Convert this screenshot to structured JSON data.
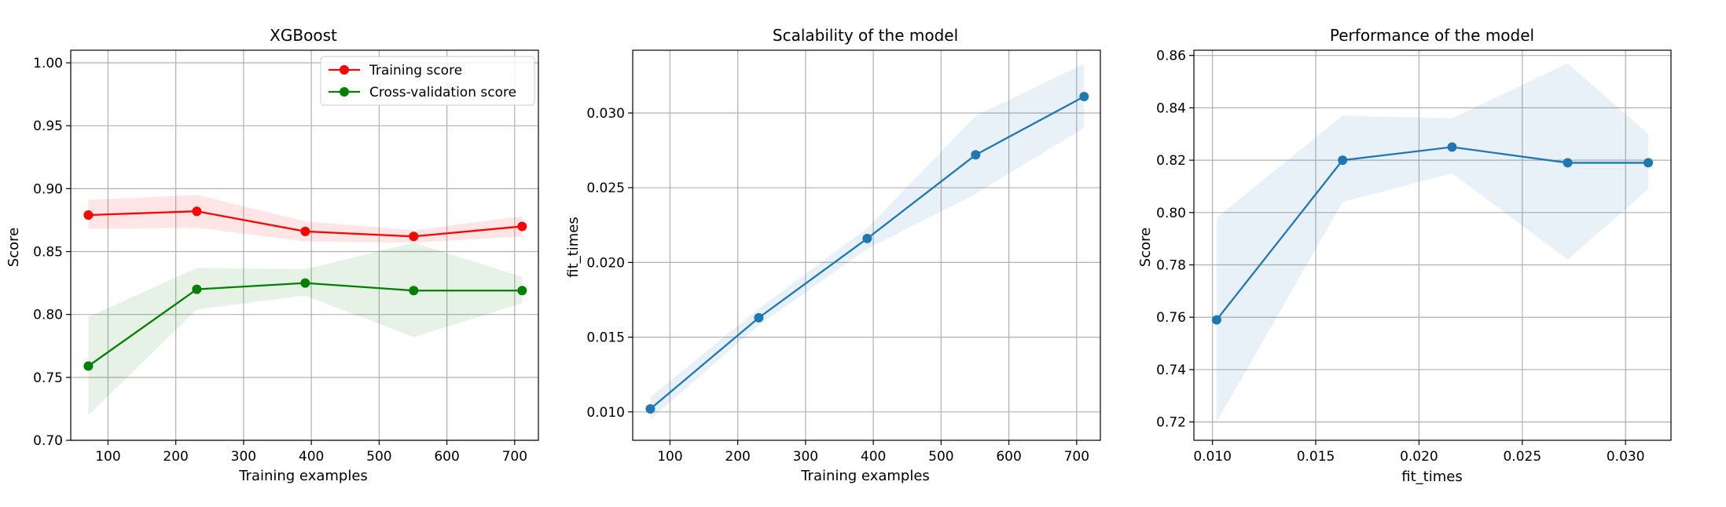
{
  "chart_data": [
    {
      "type": "line",
      "title": "XGBoost",
      "xlabel": "Training examples",
      "ylabel": "Score",
      "xlim": [
        45,
        735
      ],
      "ylim": [
        0.7,
        1.01
      ],
      "xticks": [
        100,
        200,
        300,
        400,
        500,
        600,
        700
      ],
      "xtick_labels": [
        "100",
        "200",
        "300",
        "400",
        "500",
        "600",
        "700"
      ],
      "yticks": [
        0.7,
        0.75,
        0.8,
        0.85,
        0.9,
        0.95,
        1.0
      ],
      "ytick_labels": [
        "0.70",
        "0.75",
        "0.80",
        "0.85",
        "0.90",
        "0.95",
        "1.00"
      ],
      "grid": true,
      "legend_position": "top-right",
      "series": [
        {
          "name": "Training score",
          "color": "#ff0000",
          "x": [
            71,
            231,
            391,
            551,
            711
          ],
          "y": [
            0.879,
            0.882,
            0.866,
            0.862,
            0.87
          ],
          "band_lower": [
            0.868,
            0.869,
            0.858,
            0.857,
            0.862
          ],
          "band_upper": [
            0.891,
            0.895,
            0.874,
            0.867,
            0.878
          ]
        },
        {
          "name": "Cross-validation score",
          "color": "#008000",
          "x": [
            71,
            231,
            391,
            551,
            711
          ],
          "y": [
            0.759,
            0.82,
            0.825,
            0.819,
            0.819
          ],
          "band_lower": [
            0.72,
            0.804,
            0.815,
            0.782,
            0.809
          ],
          "band_upper": [
            0.798,
            0.837,
            0.836,
            0.857,
            0.83
          ]
        }
      ]
    },
    {
      "type": "line",
      "title": "Scalability of the model",
      "xlabel": "Training examples",
      "ylabel": "fit_times",
      "xlim": [
        45,
        735
      ],
      "ylim": [
        0.0081,
        0.0342
      ],
      "xticks": [
        100,
        200,
        300,
        400,
        500,
        600,
        700
      ],
      "xtick_labels": [
        "100",
        "200",
        "300",
        "400",
        "500",
        "600",
        "700"
      ],
      "yticks": [
        0.01,
        0.015,
        0.02,
        0.025,
        0.03
      ],
      "ytick_labels": [
        "0.010",
        "0.015",
        "0.020",
        "0.025",
        "0.030"
      ],
      "grid": true,
      "series": [
        {
          "color": "#1f77b4",
          "x": [
            71,
            231,
            391,
            551,
            711
          ],
          "y": [
            0.0102,
            0.0163,
            0.0216,
            0.0272,
            0.0311
          ],
          "band_lower": [
            0.0095,
            0.0158,
            0.0209,
            0.0246,
            0.029
          ],
          "band_upper": [
            0.011,
            0.0169,
            0.0223,
            0.0298,
            0.0333
          ]
        }
      ]
    },
    {
      "type": "line",
      "title": "Performance of the model",
      "xlabel": "fit_times",
      "ylabel": "Score",
      "xlim": [
        0.0091,
        0.0322
      ],
      "ylim": [
        0.713,
        0.862
      ],
      "xticks": [
        0.01,
        0.015,
        0.02,
        0.025,
        0.03
      ],
      "xtick_labels": [
        "0.010",
        "0.015",
        "0.020",
        "0.025",
        "0.030"
      ],
      "yticks": [
        0.72,
        0.74,
        0.76,
        0.78,
        0.8,
        0.82,
        0.84,
        0.86
      ],
      "ytick_labels": [
        "0.72",
        "0.74",
        "0.76",
        "0.78",
        "0.80",
        "0.82",
        "0.84",
        "0.86"
      ],
      "grid": true,
      "series": [
        {
          "color": "#1f77b4",
          "x": [
            0.0102,
            0.0163,
            0.0216,
            0.0272,
            0.0311
          ],
          "y": [
            0.759,
            0.82,
            0.825,
            0.819,
            0.819
          ],
          "band": [
            [
              0.0102,
              0.72
            ],
            [
              0.0163,
              0.804
            ],
            [
              0.0216,
              0.815
            ],
            [
              0.0272,
              0.782
            ],
            [
              0.0311,
              0.809
            ],
            [
              0.0311,
              0.83
            ],
            [
              0.0272,
              0.857
            ],
            [
              0.0216,
              0.836
            ],
            [
              0.0163,
              0.837
            ],
            [
              0.0102,
              0.798
            ]
          ]
        }
      ]
    }
  ]
}
